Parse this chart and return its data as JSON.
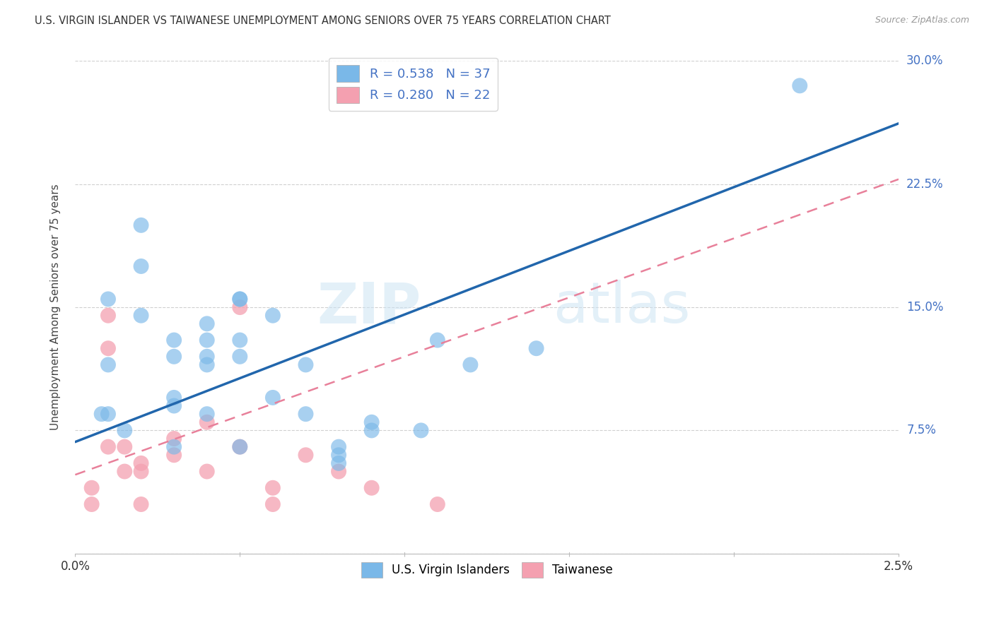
{
  "title": "U.S. VIRGIN ISLANDER VS TAIWANESE UNEMPLOYMENT AMONG SENIORS OVER 75 YEARS CORRELATION CHART",
  "source": "Source: ZipAtlas.com",
  "ylabel": "Unemployment Among Seniors over 75 years",
  "xlim": [
    0.0,
    0.025
  ],
  "ylim": [
    0.0,
    0.3
  ],
  "xticks": [
    0.0,
    0.005,
    0.01,
    0.015,
    0.02,
    0.025
  ],
  "xticklabels": [
    "0.0%",
    "",
    "",
    "",
    "",
    "2.5%"
  ],
  "yticks": [
    0.0,
    0.075,
    0.15,
    0.225,
    0.3
  ],
  "yticklabels": [
    "",
    "7.5%",
    "15.0%",
    "22.5%",
    "30.0%"
  ],
  "watermark_text": "ZIP",
  "watermark_text2": "atlas",
  "blue_color": "#7ab8e8",
  "pink_color": "#f4a0b0",
  "blue_line_color": "#2166ac",
  "pink_line_color": "#e8809a",
  "R_blue": "0.538",
  "N_blue": "37",
  "R_pink": "0.280",
  "N_pink": "22",
  "blue_line_x0": 0.0,
  "blue_line_y0": 0.068,
  "blue_line_x1": 0.025,
  "blue_line_y1": 0.262,
  "pink_line_x0": 0.0,
  "pink_line_y0": 0.048,
  "pink_line_x1": 0.025,
  "pink_line_y1": 0.228,
  "blue_points_x": [
    0.0008,
    0.002,
    0.001,
    0.001,
    0.001,
    0.0015,
    0.002,
    0.002,
    0.003,
    0.003,
    0.003,
    0.003,
    0.003,
    0.004,
    0.004,
    0.004,
    0.004,
    0.004,
    0.005,
    0.005,
    0.005,
    0.005,
    0.005,
    0.006,
    0.006,
    0.007,
    0.007,
    0.008,
    0.008,
    0.008,
    0.009,
    0.009,
    0.0105,
    0.011,
    0.012,
    0.014,
    0.022
  ],
  "blue_points_y": [
    0.085,
    0.2,
    0.155,
    0.115,
    0.085,
    0.075,
    0.145,
    0.175,
    0.13,
    0.12,
    0.095,
    0.09,
    0.065,
    0.14,
    0.13,
    0.12,
    0.115,
    0.085,
    0.155,
    0.155,
    0.13,
    0.12,
    0.065,
    0.145,
    0.095,
    0.115,
    0.085,
    0.065,
    0.06,
    0.055,
    0.08,
    0.075,
    0.075,
    0.13,
    0.115,
    0.125,
    0.285
  ],
  "pink_points_x": [
    0.0005,
    0.0005,
    0.001,
    0.001,
    0.001,
    0.0015,
    0.0015,
    0.002,
    0.002,
    0.002,
    0.003,
    0.003,
    0.004,
    0.004,
    0.005,
    0.005,
    0.006,
    0.006,
    0.007,
    0.008,
    0.009,
    0.011
  ],
  "pink_points_y": [
    0.04,
    0.03,
    0.145,
    0.125,
    0.065,
    0.065,
    0.05,
    0.055,
    0.05,
    0.03,
    0.07,
    0.06,
    0.08,
    0.05,
    0.15,
    0.065,
    0.04,
    0.03,
    0.06,
    0.05,
    0.04,
    0.03
  ],
  "background_color": "#ffffff",
  "grid_color": "#d0d0d0"
}
